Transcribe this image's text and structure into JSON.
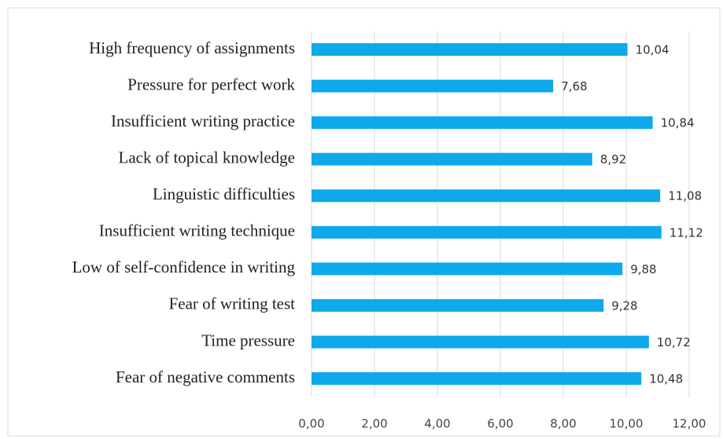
{
  "chart_data": {
    "type": "hbar",
    "categories": [
      "High frequency of assignments",
      "Pressure for perfect work",
      "Insufficient writing practice",
      "Lack of topical knowledge",
      "Linguistic difficulties",
      "Insufficient writing technique",
      "Low of self-confidence in writing",
      "Fear of writing test",
      "Time pressure",
      "Fear of negative comments"
    ],
    "values": [
      10.04,
      7.68,
      10.84,
      8.92,
      11.08,
      11.12,
      9.88,
      9.28,
      10.72,
      10.48
    ],
    "value_labels": [
      "10,04",
      "7,68",
      "10,84",
      "8,92",
      "11,08",
      "11,12",
      "9,88",
      "9,28",
      "10,72",
      "10,48"
    ],
    "color": "#0ea9ea",
    "xlim": [
      0,
      12
    ],
    "xticks": [
      {
        "value": 0,
        "label": "0,00"
      },
      {
        "value": 2,
        "label": "2,00"
      },
      {
        "value": 4,
        "label": "4,00"
      },
      {
        "value": 6,
        "label": "6,00"
      },
      {
        "value": 8,
        "label": "8,00"
      },
      {
        "value": 10,
        "label": "10,00"
      },
      {
        "value": 12,
        "label": "12,00"
      }
    ],
    "grid": true
  }
}
